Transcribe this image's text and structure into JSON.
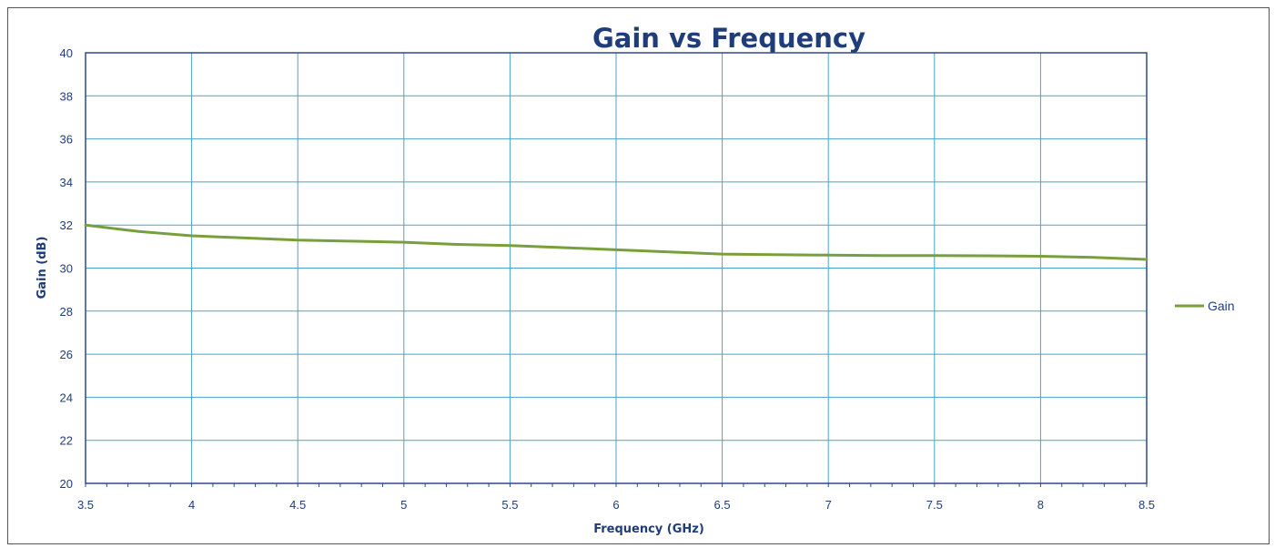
{
  "chart_data": {
    "type": "line",
    "title": "Gain vs Frequency",
    "xlabel": "Frequency (GHz)",
    "ylabel": "Gain (dB)",
    "xlim": [
      3.5,
      8.5
    ],
    "ylim": [
      20,
      40
    ],
    "x_ticks": [
      "3.5",
      "4",
      "4.5",
      "5",
      "5.5",
      "6",
      "6.5",
      "7",
      "7.5",
      "8",
      "8.5"
    ],
    "y_ticks": [
      "20",
      "22",
      "24",
      "26",
      "28",
      "30",
      "32",
      "34",
      "36",
      "38",
      "40"
    ],
    "grid": true,
    "legend_position": "right",
    "series": [
      {
        "name": "Gain",
        "color": "#77a03c",
        "x": [
          3.5,
          3.75,
          4.0,
          4.25,
          4.5,
          4.75,
          5.0,
          5.25,
          5.5,
          5.75,
          6.0,
          6.25,
          6.5,
          6.75,
          7.0,
          7.25,
          7.5,
          7.75,
          8.0,
          8.25,
          8.5
        ],
        "y": [
          32.0,
          31.7,
          31.5,
          31.4,
          31.3,
          31.25,
          31.2,
          31.1,
          31.05,
          30.95,
          30.85,
          30.75,
          30.65,
          30.62,
          30.6,
          30.58,
          30.58,
          30.57,
          30.55,
          30.5,
          30.4
        ]
      }
    ],
    "colors": {
      "grid": "#4aa3c9",
      "axis": "#2b4a8c",
      "text": "#1f3d7a"
    }
  }
}
